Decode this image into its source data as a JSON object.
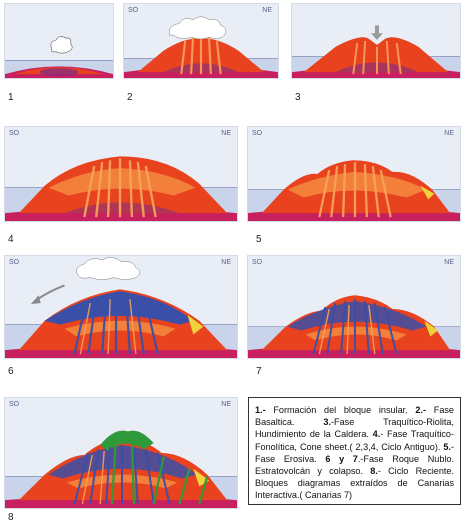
{
  "panels": [
    {
      "id": 1,
      "number": "1",
      "so": "",
      "ne": ""
    },
    {
      "id": 2,
      "number": "2",
      "so": "SO",
      "ne": "NE"
    },
    {
      "id": 3,
      "number": "3",
      "so": "",
      "ne": ""
    },
    {
      "id": 4,
      "number": "4",
      "so": "SO",
      "ne": "NE"
    },
    {
      "id": 5,
      "number": "5",
      "so": "SO",
      "ne": "NE"
    },
    {
      "id": 6,
      "number": "6",
      "so": "SO",
      "ne": "NE"
    },
    {
      "id": 7,
      "number": "7",
      "so": "SO",
      "ne": "NE"
    },
    {
      "id": 8,
      "number": "8",
      "so": "SO",
      "ne": "NE"
    }
  ],
  "caption": {
    "b1": "1.-",
    "t1": " Formación del bloque insular. ",
    "b2": "2.-",
    "t2": " Fase Basaltica. ",
    "b3": "3.",
    "t3": "-Fase Traquítico-Riolita, Hundimiento de la Caldera. ",
    "b4": "4.",
    "t4": "- Fase Traquítico-Fonolítica, Cone sheet.( 2,3,4, Ciclo Antiguo). ",
    "b5": "5.",
    "t5": "- Fase Erosiva. ",
    "b6": "6 y 7",
    "t6": ".-Fase Roque Nublo. Estratovolcán y colapso. ",
    "b8": "8.",
    "t8": "- Ciclo Reciente. Bloques diagramas extraídos de Canarias Interactiva.( Canarias 7)"
  },
  "colors": {
    "sky": "#e9eef6",
    "sea": "#c9d3ea",
    "base": "#c8205f",
    "basalt": "#e8421f",
    "trachyte": "#f2803a",
    "dyke": "#f7a25a",
    "blue_dyke": "#3a4fa8",
    "green": "#2f9a3a",
    "magma": "#7a2a8a"
  }
}
